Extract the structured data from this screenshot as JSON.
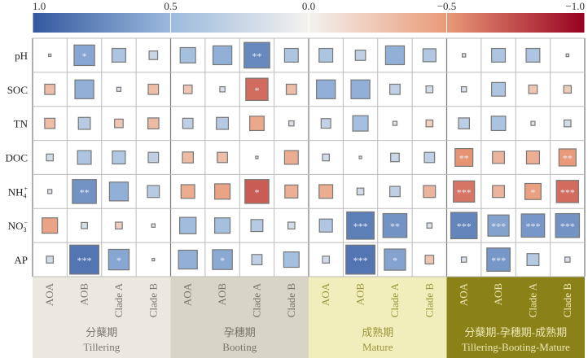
{
  "chart_data": {
    "type": "heatmap",
    "title": "",
    "colorbar": {
      "ticks": [
        "1.0",
        "0.5",
        "0.0",
        "−0.5",
        "−1.0"
      ],
      "tick_values": [
        1,
        0.5,
        0,
        -0.5,
        -1
      ],
      "range": [
        1,
        -1
      ],
      "colors": {
        "pos1": "#33589f",
        "pos05": "#9cbadd",
        "zero": "#f4f2ef",
        "neg05": "#e99a78",
        "neg1": "#980020"
      }
    },
    "rows": [
      "pH",
      "SOC",
      "TN",
      "DOC",
      "NH4+",
      "NO3−",
      "AP"
    ],
    "row_labels_html": [
      {
        "base": "pH",
        "sub": "",
        "sup": ""
      },
      {
        "base": "SOC",
        "sub": "",
        "sup": ""
      },
      {
        "base": "TN",
        "sub": "",
        "sup": ""
      },
      {
        "base": "DOC",
        "sub": "",
        "sup": ""
      },
      {
        "base": "NH",
        "sub": "4",
        "sup": "+"
      },
      {
        "base": "NO",
        "sub": "3",
        "sup": "−"
      },
      {
        "base": "AP",
        "sub": "",
        "sup": ""
      }
    ],
    "columns": [
      "AOA",
      "AOB",
      "Clade A",
      "Clade B"
    ],
    "groups": [
      {
        "cn": "分蘖期",
        "en": "Tillering",
        "bg": "#ebe8e2",
        "fg": "#7a7770"
      },
      {
        "cn": "孕穗期",
        "en": "Booting",
        "bg": "#d8d5c7",
        "fg": "#77746a"
      },
      {
        "cn": "成熟期",
        "en": "Mature",
        "bg": "#f1eebb",
        "fg": "#9a963e"
      },
      {
        "cn": "分蘖期-孕穗期-成熟期",
        "en": "Tillering-Booting-Mature",
        "bg": "#8a8219",
        "fg": "#ece7b4"
      }
    ],
    "values": [
      [
        0.05,
        0.6,
        0.4,
        0.25,
        0.45,
        0.55,
        0.75,
        0.4,
        0.4,
        0.3,
        0.55,
        0.38,
        0.1,
        0.4,
        0.4,
        0.08
      ],
      [
        -0.3,
        0.55,
        0.12,
        -0.3,
        -0.25,
        0.15,
        -0.65,
        -0.3,
        0.55,
        0.55,
        0.3,
        0.2,
        0.15,
        0.4,
        -0.25,
        -0.22
      ],
      [
        -0.3,
        0.35,
        -0.25,
        -0.32,
        0.3,
        0.35,
        -0.42,
        0.15,
        0.28,
        0.45,
        0.12,
        -0.2,
        0.32,
        0.42,
        0.12,
        0.2
      ],
      [
        0.2,
        0.4,
        0.38,
        0.3,
        -0.32,
        -0.3,
        0.05,
        -0.4,
        0.2,
        0.05,
        0.25,
        0.3,
        -0.52,
        -0.35,
        -0.38,
        -0.5
      ],
      [
        0.12,
        0.7,
        0.55,
        0.35,
        -0.4,
        -0.45,
        -0.7,
        -0.38,
        -0.4,
        0.2,
        0.3,
        -0.35,
        -0.62,
        -0.35,
        -0.47,
        -0.65
      ],
      [
        -0.45,
        0.18,
        -0.2,
        0.1,
        0.48,
        0.45,
        0.35,
        0.2,
        0.38,
        0.8,
        0.7,
        0.15,
        0.77,
        0.62,
        0.68,
        0.7
      ],
      [
        0.2,
        0.85,
        0.6,
        0.06,
        0.55,
        0.58,
        0.3,
        0.45,
        0.2,
        0.85,
        0.62,
        -0.25,
        0.15,
        0.68,
        0.35,
        0.15
      ]
    ],
    "significance": [
      [
        "",
        "*",
        "",
        "",
        "",
        "",
        "**",
        "",
        "",
        "",
        "",
        "",
        "",
        "",
        "",
        ""
      ],
      [
        "",
        "",
        "",
        "",
        "",
        "",
        "*",
        "",
        "",
        "",
        "",
        "",
        "",
        "",
        "",
        ""
      ],
      [
        "",
        "",
        "",
        "",
        "",
        "",
        "",
        "",
        "",
        "",
        "",
        "",
        "",
        "",
        "",
        ""
      ],
      [
        "",
        "",
        "",
        "",
        "",
        "",
        "",
        "",
        "",
        "",
        "",
        "",
        "**",
        "",
        "",
        "**"
      ],
      [
        "",
        "**",
        "",
        "",
        "",
        "",
        "*",
        "",
        "",
        "",
        "",
        "",
        "***",
        "",
        "*",
        "***"
      ],
      [
        "",
        "",
        "",
        "",
        "",
        "",
        "",
        "",
        "",
        "***",
        "**",
        "",
        "***",
        "***",
        "***",
        "***"
      ],
      [
        "",
        "***",
        "*",
        "",
        "",
        "*",
        "",
        "",
        "",
        "***",
        "*",
        "",
        "",
        "***",
        "",
        ""
      ]
    ]
  }
}
